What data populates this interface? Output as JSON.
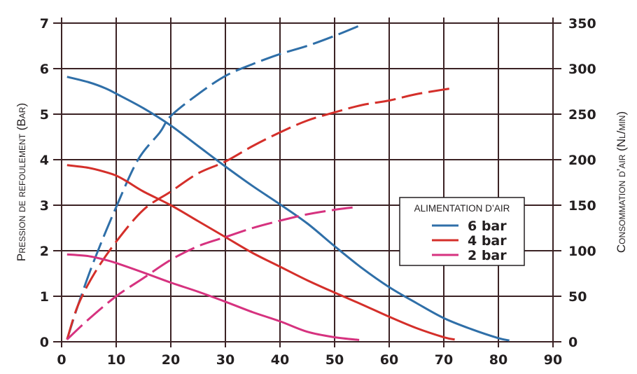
{
  "chart_data": {
    "type": "line",
    "xlim": [
      0,
      90
    ],
    "x_ticks": [
      "0",
      "10",
      "20",
      "30",
      "40",
      "50",
      "60",
      "70",
      "80",
      "90"
    ],
    "y_left": {
      "label": "Pression de refoulement (Bar)",
      "lim": [
        0,
        7
      ],
      "ticks": [
        "0",
        "1",
        "2",
        "3",
        "4",
        "5",
        "6",
        "7"
      ]
    },
    "y_right": {
      "label": "Consommation d’air (Nl/min)",
      "lim": [
        0,
        350
      ],
      "ticks": [
        "0",
        "50",
        "100",
        "150",
        "200",
        "250",
        "300",
        "350"
      ]
    },
    "grid": true,
    "legend": {
      "title": "ALIMENTATION D’AIR",
      "placement": "center-right",
      "items": [
        "6 bar",
        "4 bar",
        "2 bar"
      ]
    },
    "series": [
      {
        "name": "6 bar",
        "color": "#2f6fa8",
        "kind": "pressure",
        "axis": "left",
        "style": "solid",
        "x": [
          1,
          5,
          8,
          10,
          15,
          20,
          25,
          30,
          35,
          40,
          45,
          50,
          55,
          60,
          65,
          70,
          75,
          80,
          82
        ],
        "y": [
          5.82,
          5.7,
          5.57,
          5.45,
          5.13,
          4.75,
          4.3,
          3.85,
          3.42,
          3.02,
          2.6,
          2.1,
          1.62,
          1.2,
          0.85,
          0.52,
          0.28,
          0.08,
          0.03
        ]
      },
      {
        "name": "6 bar",
        "color": "#2f6fa8",
        "kind": "air consumption",
        "axis": "right",
        "style": "dashed",
        "x": [
          1,
          3,
          6,
          10,
          14,
          18,
          20,
          25,
          30,
          35,
          40,
          45,
          50,
          54.5
        ],
        "y": [
          2.5,
          40,
          90,
          148,
          200,
          230,
          248,
          272,
          292,
          305,
          316,
          325,
          336,
          347
        ]
      },
      {
        "name": "4 bar",
        "color": "#d42f2a",
        "kind": "pressure",
        "axis": "left",
        "style": "solid",
        "x": [
          1,
          5,
          8,
          10,
          12,
          15,
          20,
          25,
          30,
          35,
          40,
          45,
          50,
          55,
          60,
          65,
          70,
          72
        ],
        "y": [
          3.88,
          3.82,
          3.73,
          3.65,
          3.52,
          3.3,
          3.0,
          2.65,
          2.3,
          1.95,
          1.65,
          1.35,
          1.08,
          0.82,
          0.55,
          0.3,
          0.1,
          0.05
        ]
      },
      {
        "name": "4 bar",
        "color": "#d42f2a",
        "kind": "air consumption",
        "axis": "right",
        "style": "dashed",
        "x": [
          1,
          3,
          6,
          10,
          15,
          20,
          25,
          30,
          35,
          40,
          45,
          50,
          55,
          60,
          65,
          71
        ],
        "y": [
          2.5,
          40,
          75,
          110,
          145,
          165,
          185,
          198,
          215,
          230,
          243,
          252,
          260,
          265,
          272,
          278
        ]
      },
      {
        "name": "2 bar",
        "color": "#d6327f",
        "kind": "pressure",
        "axis": "left",
        "style": "solid",
        "x": [
          1,
          5,
          8,
          10,
          15,
          20,
          25,
          30,
          35,
          40,
          45,
          50,
          54.5
        ],
        "y": [
          1.92,
          1.88,
          1.8,
          1.73,
          1.52,
          1.3,
          1.1,
          0.88,
          0.65,
          0.45,
          0.22,
          0.1,
          0.04
        ]
      },
      {
        "name": "2 bar",
        "color": "#d6327f",
        "kind": "air consumption",
        "axis": "right",
        "style": "dashed",
        "x": [
          1,
          5,
          10,
          15,
          20,
          25,
          30,
          35,
          40,
          45,
          50,
          54
        ],
        "y": [
          2.5,
          25,
          50,
          70,
          90,
          105,
          115,
          125,
          133,
          140,
          145,
          148
        ]
      }
    ]
  }
}
